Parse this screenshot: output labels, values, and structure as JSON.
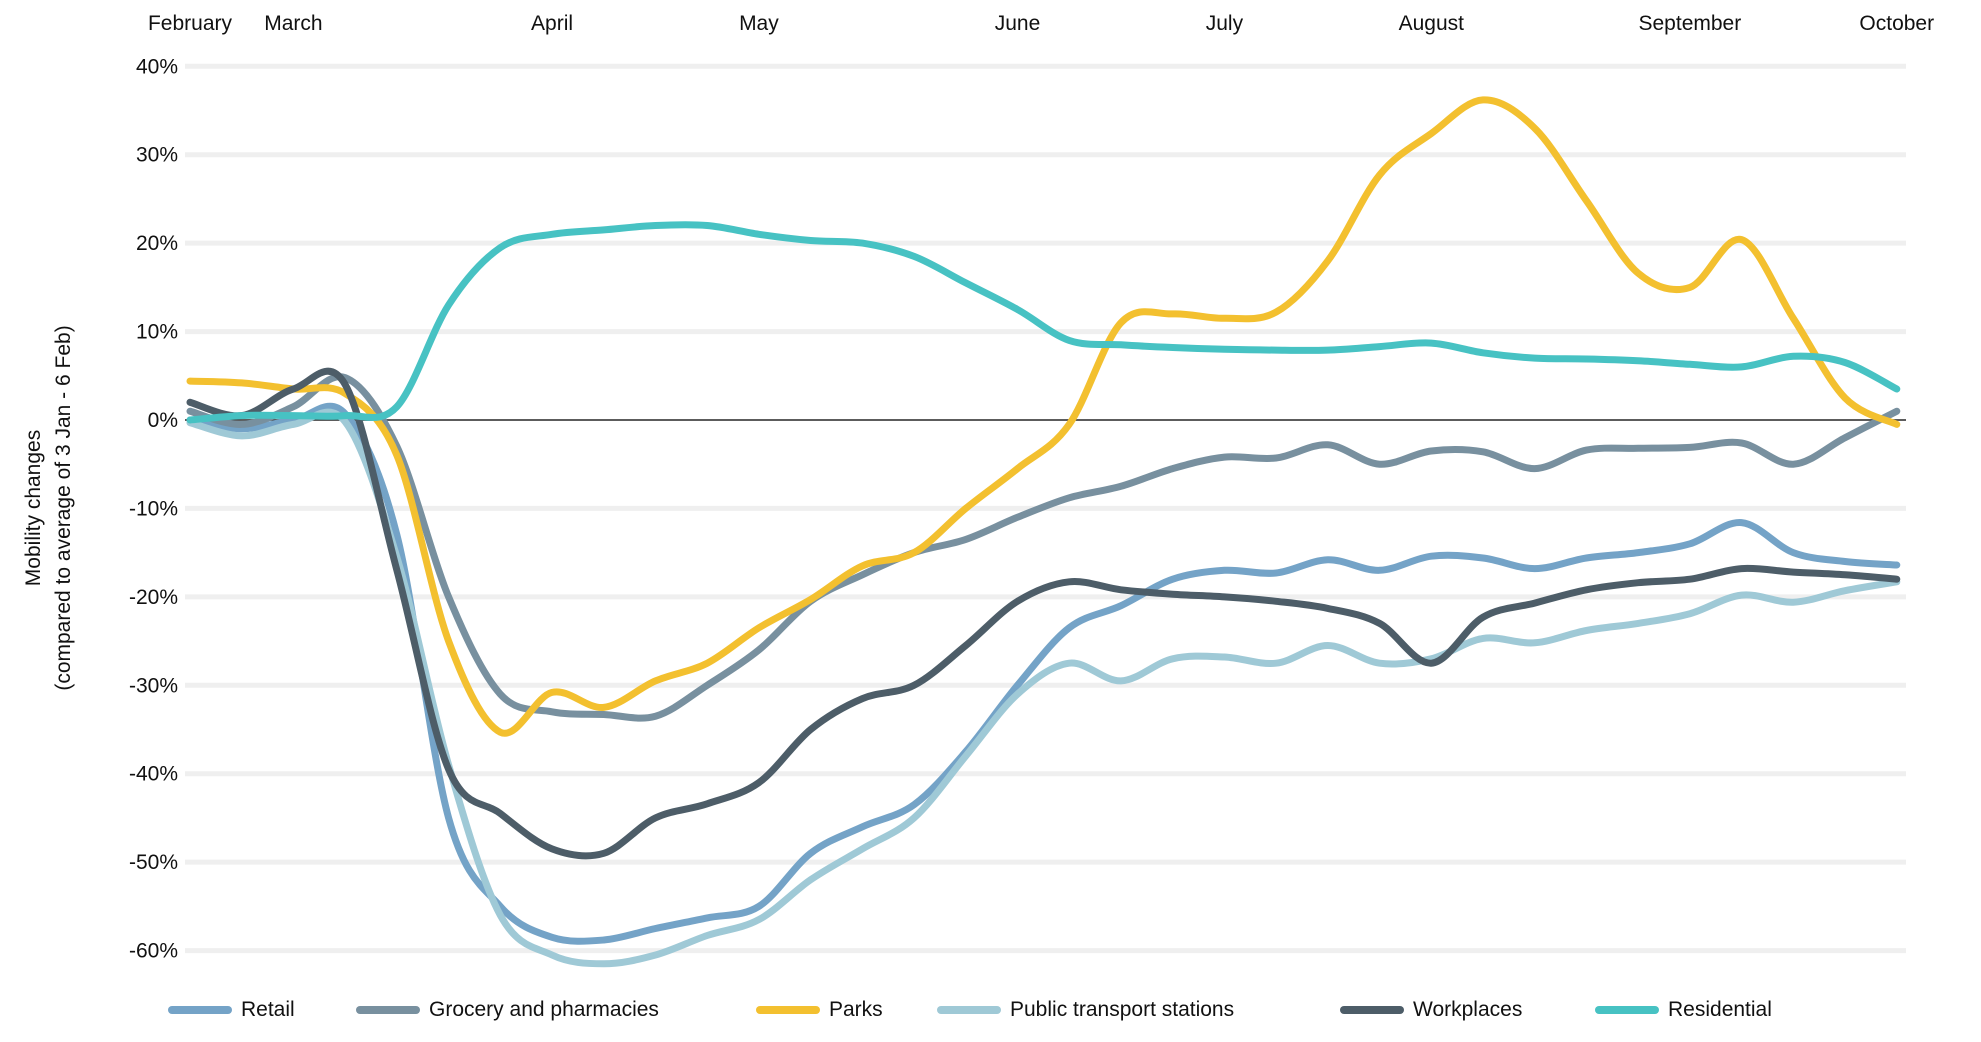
{
  "chart_data": {
    "type": "line",
    "title": "",
    "y_axis": {
      "title_line1": "Mobility changes",
      "title_line2": "(compared to average of 3 Jan - 6 Feb)",
      "ticks": [
        40,
        30,
        20,
        10,
        0,
        -10,
        -20,
        -30,
        -40,
        -50,
        -60
      ],
      "tick_suffix": "%",
      "ylim": [
        -60,
        40
      ]
    },
    "x_axis": {
      "unit": "week",
      "n_points": 34,
      "month_ticks": [
        {
          "label": "February",
          "week": 0
        },
        {
          "label": "March",
          "week": 2
        },
        {
          "label": "April",
          "week": 7
        },
        {
          "label": "May",
          "week": 11
        },
        {
          "label": "June",
          "week": 16
        },
        {
          "label": "July",
          "week": 20
        },
        {
          "label": "August",
          "week": 24
        },
        {
          "label": "September",
          "week": 29
        },
        {
          "label": "October",
          "week": 33
        }
      ]
    },
    "grid": "horizontal",
    "legend_position": "bottom",
    "series": [
      {
        "name": "Retail",
        "color": "#74A3C7",
        "values": [
          0,
          -1,
          0,
          0.7,
          -13,
          -45,
          -55,
          -58.5,
          -58.8,
          -57.5,
          -56.3,
          -55,
          -49,
          -46,
          -43.5,
          -37.5,
          -30,
          -23.5,
          -21,
          -18,
          -17,
          -17.3,
          -15.8,
          -17,
          -15.4,
          -15.6,
          -16.8,
          -15.6,
          -15,
          -14,
          -11.6,
          -15,
          -16,
          -16.4
        ]
      },
      {
        "name": "Grocery and pharmacies",
        "color": "#78909F",
        "values": [
          1,
          -0.5,
          1.5,
          4.8,
          -3,
          -20,
          -31,
          -33,
          -33.3,
          -33.5,
          -30,
          -26,
          -20.5,
          -17.5,
          -15,
          -13.5,
          -11,
          -8.8,
          -7.5,
          -5.5,
          -4.2,
          -4.3,
          -2.8,
          -5,
          -3.5,
          -3.6,
          -5.5,
          -3.4,
          -3.2,
          -3.1,
          -2.6,
          -5,
          -2,
          1
        ]
      },
      {
        "name": "Parks",
        "color": "#F3C02F",
        "values": [
          4.4,
          4.2,
          3.5,
          3,
          -4,
          -25,
          -35.3,
          -30.8,
          -32.5,
          -29.5,
          -27.5,
          -23.5,
          -20.3,
          -16.5,
          -15,
          -10,
          -5.5,
          -0.5,
          11,
          12,
          11.5,
          12.2,
          18,
          27.7,
          32.4,
          36.2,
          33,
          24.8,
          16.6,
          15,
          20.4,
          11.5,
          2.5,
          -0.5
        ]
      },
      {
        "name": "Public transport stations",
        "color": "#9FC9D6",
        "values": [
          -0.3,
          -1.8,
          -0.5,
          -0.2,
          -15.5,
          -39,
          -56,
          -60.5,
          -61.5,
          -60.5,
          -58.3,
          -56.5,
          -52,
          -48.5,
          -45,
          -38,
          -31,
          -27.5,
          -29.5,
          -27,
          -26.8,
          -27.5,
          -25.5,
          -27.5,
          -27,
          -24.7,
          -25.2,
          -23.8,
          -23,
          -21.9,
          -19.8,
          -20.6,
          -19.3,
          -18.3
        ]
      },
      {
        "name": "Workplaces",
        "color": "#4D5D68",
        "values": [
          2,
          0.5,
          3.5,
          4,
          -17,
          -39.5,
          -44.5,
          -48.5,
          -49,
          -45,
          -43.4,
          -41,
          -35,
          -31.5,
          -30,
          -25.5,
          -20.5,
          -18.3,
          -19.2,
          -19.7,
          -20,
          -20.5,
          -21.3,
          -23,
          -27.5,
          -22.3,
          -20.7,
          -19.2,
          -18.4,
          -18,
          -16.8,
          -17.2,
          -17.5,
          -18
        ]
      },
      {
        "name": "Residential",
        "color": "#47C2C3",
        "values": [
          0,
          0.5,
          0.5,
          0.5,
          1.5,
          13,
          19.5,
          21,
          21.5,
          22,
          22,
          21,
          20.3,
          20,
          18.5,
          15.5,
          12.5,
          9,
          8.5,
          8.2,
          8,
          7.9,
          7.9,
          8.3,
          8.7,
          7.6,
          7,
          6.9,
          6.7,
          6.3,
          6,
          7.2,
          6.5,
          3.5
        ]
      }
    ]
  },
  "colors": {
    "background": "#ffffff",
    "gridline": "#efefef",
    "zero_line": "#454545",
    "text": "#111111"
  }
}
